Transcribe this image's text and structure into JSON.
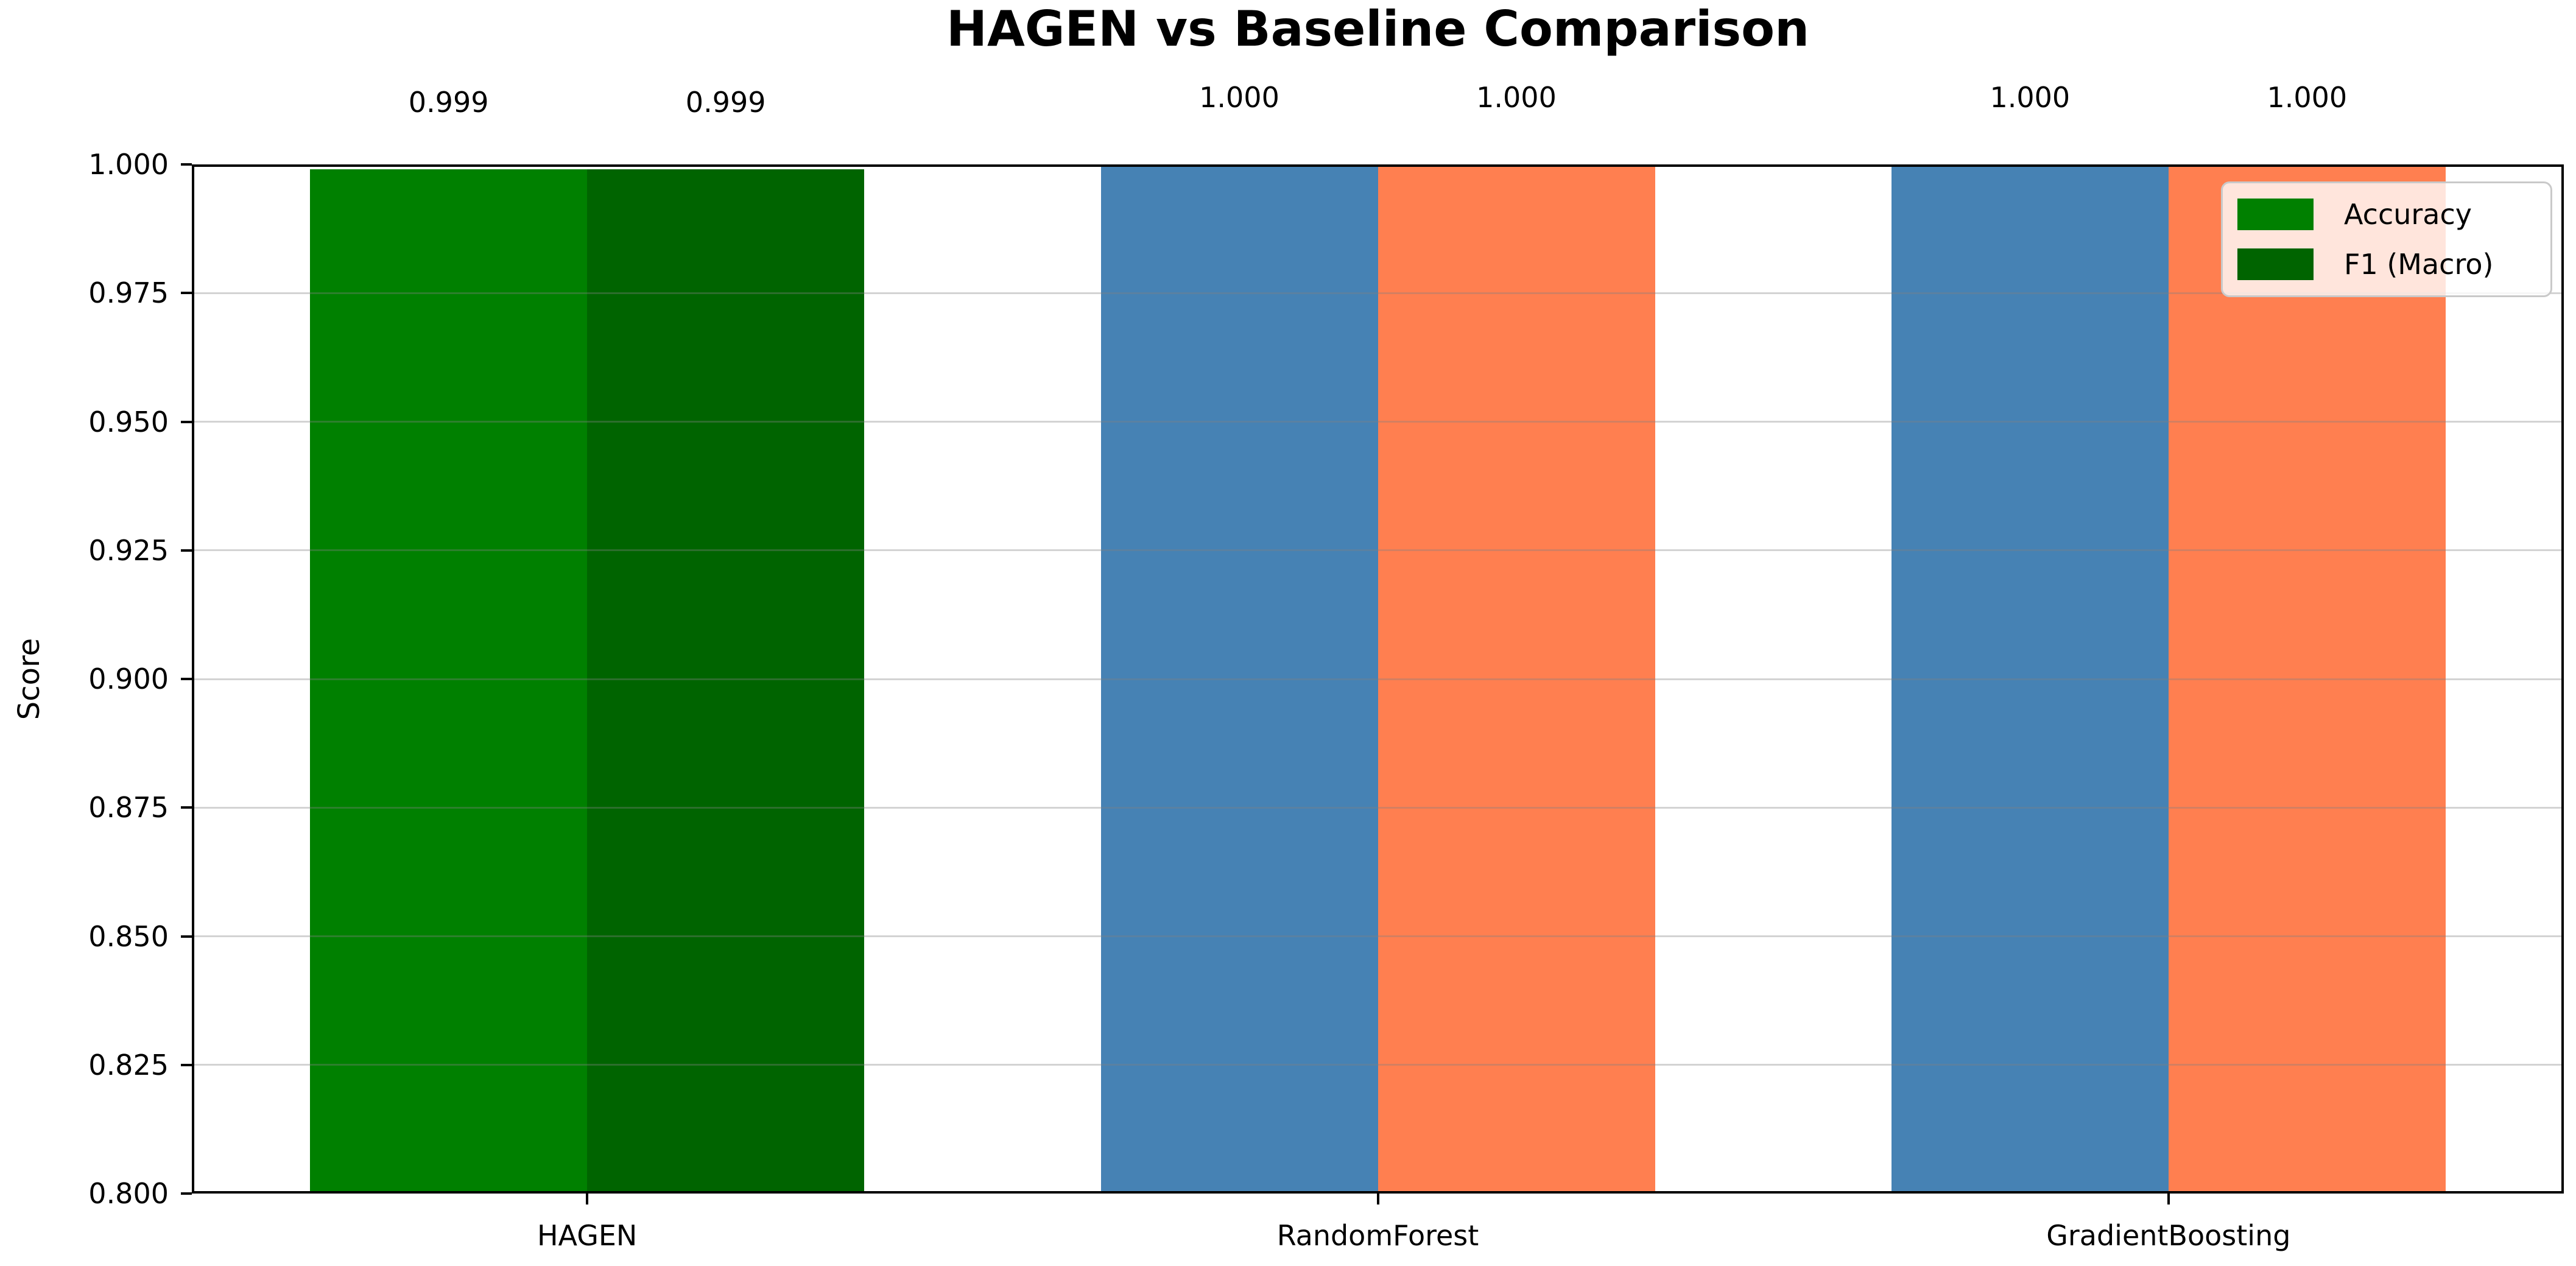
{
  "chart_data": {
    "type": "bar",
    "title": "HAGEN vs Baseline Comparison",
    "xlabel": "",
    "ylabel": "Score",
    "ylim": [
      0.8,
      1.0
    ],
    "ytick_labels": [
      "0.800",
      "0.825",
      "0.850",
      "0.875",
      "0.900",
      "0.925",
      "0.950",
      "0.975",
      "1.000"
    ],
    "grid": "horizontal-only, light gray, drawn over bars",
    "legend_position": "upper right",
    "categories": [
      "HAGEN",
      "RandomForest",
      "GradientBoosting"
    ],
    "series": [
      {
        "name": "Accuracy",
        "values": [
          0.999,
          1.0,
          1.0
        ],
        "value_labels": [
          "0.999",
          "1.000",
          "1.000"
        ],
        "bar_colors": [
          "#008000",
          "#4682B4",
          "#4682B4"
        ]
      },
      {
        "name": "F1 (Macro)",
        "values": [
          0.999,
          1.0,
          1.0
        ],
        "value_labels": [
          "0.999",
          "1.000",
          "1.000"
        ],
        "bar_colors": [
          "#006400",
          "#FF7F50",
          "#FF7F50"
        ]
      }
    ],
    "legend": [
      {
        "label": "Accuracy",
        "color": "#008000"
      },
      {
        "label": "F1 (Macro)",
        "color": "#006400"
      }
    ],
    "colors": {
      "hagen_accuracy": "#008000",
      "hagen_f1_macro": "#006400",
      "baseline_accuracy": "#4682B4",
      "baseline_f1_macro": "#FF7F50",
      "grid": "#d9d9d9",
      "axes_frame": "#000000",
      "background": "#ffffff"
    }
  }
}
